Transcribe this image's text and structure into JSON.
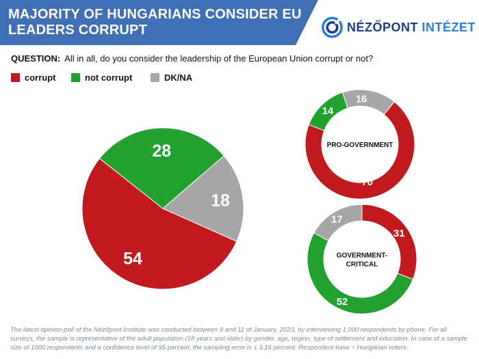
{
  "header": {
    "title": "MAJORITY OF HUNGARIANS CONSIDER EU LEADERS CORRUPT",
    "logo_word1": "NÉZŐPONT",
    "logo_word2": "INTÉZET",
    "logo_icon": "target-logo-icon",
    "band_color": "#3f6fb5",
    "logo_color1": "#1f3c88",
    "logo_color2": "#2d7fd3"
  },
  "question": {
    "label": "QUESTION:",
    "text": "All in all, do you consider the leadership of the European Union corrupt or not?"
  },
  "colors": {
    "corrupt": "#c01a1f",
    "not_corrupt": "#23a12f",
    "dkna": "#a6a6a6"
  },
  "chart_data": [
    {
      "type": "pie",
      "title": "",
      "categories": [
        "corrupt",
        "not corrupt",
        "DK/NA"
      ],
      "values": [
        54,
        28,
        18
      ],
      "labels": [
        "54",
        "28",
        "18"
      ]
    },
    {
      "type": "pie",
      "title": "PRO-GOVERNMENT",
      "categories": [
        "corrupt",
        "not corrupt",
        "DK/NA"
      ],
      "values": [
        70,
        14,
        16
      ],
      "labels": [
        "70",
        "14",
        "16"
      ]
    },
    {
      "type": "pie",
      "title": "GOVERNMENT-CRITICAL",
      "title_lines": [
        "GOVERNMENT-",
        "CRITICAL"
      ],
      "categories": [
        "corrupt",
        "not corrupt",
        "DK/NA"
      ],
      "values": [
        31,
        52,
        17
      ],
      "labels": [
        "31",
        "52",
        "17"
      ]
    }
  ],
  "footnote": "The latest opinion-poll of the Nézőpont Institute was conducted between 9 and 11 of January, 2023, by interviewing 1,000 respondents by phone. For all surveys, the sample is representative of the adult population (18 years and older) by gender, age, region, type of settlement and education. In case of a sample size of 1000 respondents and a confidence level of 95 percent, the sampling error is ± 3.16 percent. Respondent base = Hungarian voters."
}
